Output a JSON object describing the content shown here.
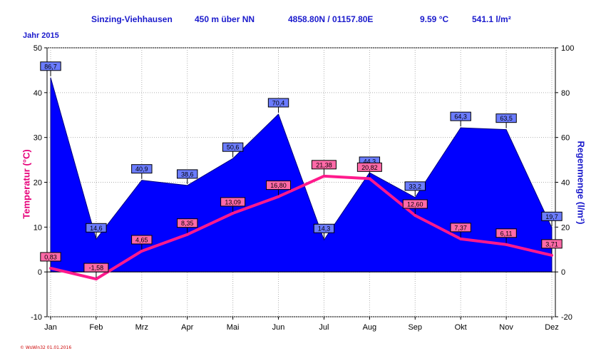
{
  "header": {
    "station": "Sinzing-Viehhausen",
    "altitude": "450 m über NN",
    "coordinates": "4858.80N / 01157.80E",
    "avg_temperature": "9.59 °C",
    "total_rain": "541.1 l/m²"
  },
  "year_label": "Jahr  2015",
  "footer": "© WsWin32  01.01.2016",
  "colors": {
    "temperature": "#ff1a8c",
    "temperature_title": "#e6007a",
    "rain_fill": "#0000ff",
    "text_blue": "#1a1acc"
  },
  "chart_data": {
    "type": "area",
    "categories": [
      "Jan",
      "Feb",
      "Mrz",
      "Apr",
      "Mai",
      "Jun",
      "Jul",
      "Aug",
      "Sep",
      "Okt",
      "Nov",
      "Dez"
    ],
    "series": [
      {
        "name": "Regenmenge",
        "type": "area",
        "axis": "right",
        "values": [
          86.7,
          14.6,
          40.9,
          38.6,
          50.6,
          70.4,
          14.3,
          44.3,
          33.2,
          64.3,
          63.5,
          19.7
        ],
        "labels": [
          "86,7",
          "14,6",
          "40,9",
          "38,6",
          "50,6",
          "70,4",
          "14,3",
          "44,3",
          "33,2",
          "64,3",
          "63,5",
          "19,7"
        ]
      },
      {
        "name": "Temperatur",
        "type": "line",
        "axis": "left",
        "values": [
          0.83,
          -1.58,
          4.65,
          8.35,
          13.09,
          16.8,
          21.38,
          20.82,
          12.6,
          7.37,
          6.11,
          3.71
        ],
        "labels": [
          "0,83",
          "-1,58",
          "4,65",
          "8,35",
          "13,09",
          "16,80",
          "21,38",
          "20,82",
          "12,60",
          "7,37",
          "6,11",
          "3,71"
        ]
      }
    ],
    "y_left": {
      "label": "Temperatur  (°C)",
      "min": -10,
      "max": 50,
      "ticks": [
        -10,
        0,
        10,
        20,
        30,
        40,
        50
      ]
    },
    "y_right": {
      "label": "Regenmenge  (l/m²)",
      "min": -20,
      "max": 100,
      "ticks": [
        -20,
        0,
        20,
        40,
        60,
        80,
        100
      ]
    },
    "grid": true
  }
}
